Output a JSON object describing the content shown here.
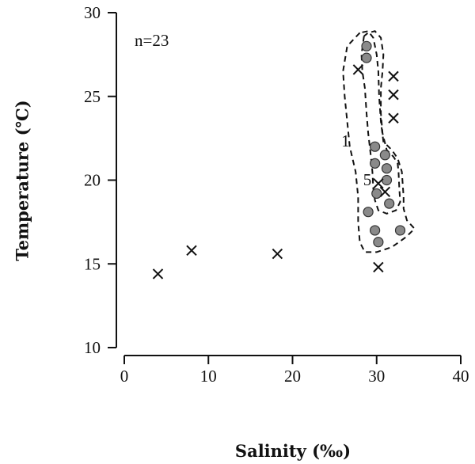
{
  "chart_data": {
    "type": "scatter",
    "xlabel": "Salinity (‰)",
    "ylabel": "Temperature (℃)",
    "xlim": [
      0,
      40
    ],
    "ylim": [
      10,
      30
    ],
    "xticks": [
      "0",
      "10",
      "20",
      "30",
      "40"
    ],
    "yticks": [
      "10",
      "15",
      "20",
      "25",
      "30"
    ],
    "grid": false,
    "annotation": "n=23",
    "contour_labels": [
      "1",
      "5"
    ],
    "series": [
      {
        "marker": "circle",
        "color": "#8a8a8a",
        "points": [
          {
            "x": 28.8,
            "y": 28.0
          },
          {
            "x": 28.8,
            "y": 27.3
          },
          {
            "x": 29.8,
            "y": 22.0
          },
          {
            "x": 31.0,
            "y": 21.5
          },
          {
            "x": 29.8,
            "y": 21.0
          },
          {
            "x": 31.2,
            "y": 20.7
          },
          {
            "x": 31.2,
            "y": 20.0
          },
          {
            "x": 30.0,
            "y": 19.2
          },
          {
            "x": 31.5,
            "y": 18.6
          },
          {
            "x": 29.0,
            "y": 18.1
          },
          {
            "x": 29.8,
            "y": 17.0
          },
          {
            "x": 32.8,
            "y": 17.0
          },
          {
            "x": 30.2,
            "y": 16.3
          }
        ]
      },
      {
        "marker": "cross",
        "color": "#111111",
        "points": [
          {
            "x": 4.0,
            "y": 14.4
          },
          {
            "x": 8.0,
            "y": 15.8
          },
          {
            "x": 18.2,
            "y": 15.6
          },
          {
            "x": 27.8,
            "y": 26.6
          },
          {
            "x": 32.0,
            "y": 26.2
          },
          {
            "x": 32.0,
            "y": 25.1
          },
          {
            "x": 32.0,
            "y": 23.7
          },
          {
            "x": 30.2,
            "y": 19.8
          },
          {
            "x": 31.0,
            "y": 19.3
          },
          {
            "x": 30.2,
            "y": 14.8
          }
        ]
      }
    ],
    "contours": [
      {
        "level": "1",
        "points": [
          [
            28.0,
            28.8
          ],
          [
            26.5,
            28.0
          ],
          [
            26.0,
            26.5
          ],
          [
            26.2,
            25.0
          ],
          [
            26.5,
            23.5
          ],
          [
            26.8,
            22.0
          ],
          [
            27.5,
            20.5
          ],
          [
            27.8,
            19.0
          ],
          [
            27.8,
            17.5
          ],
          [
            28.0,
            16.3
          ],
          [
            28.6,
            15.7
          ],
          [
            30.0,
            15.7
          ],
          [
            31.8,
            16.0
          ],
          [
            33.5,
            16.6
          ],
          [
            34.5,
            17.1
          ],
          [
            33.6,
            17.6
          ],
          [
            33.2,
            18.3
          ],
          [
            33.2,
            19.0
          ],
          [
            33.0,
            20.5
          ],
          [
            32.5,
            21.3
          ],
          [
            31.8,
            21.8
          ],
          [
            30.8,
            22.3
          ],
          [
            30.5,
            23.5
          ],
          [
            30.3,
            25.0
          ],
          [
            30.2,
            26.5
          ],
          [
            30.0,
            27.5
          ],
          [
            29.6,
            28.5
          ],
          [
            29.0,
            28.9
          ],
          [
            28.0,
            28.8
          ]
        ]
      },
      {
        "level": "5",
        "points": [
          [
            28.5,
            28.6
          ],
          [
            28.2,
            27.5
          ],
          [
            28.3,
            26.5
          ],
          [
            28.6,
            25.5
          ],
          [
            28.8,
            24.0
          ],
          [
            29.0,
            22.8
          ],
          [
            29.3,
            21.5
          ],
          [
            29.5,
            20.5
          ],
          [
            29.6,
            19.5
          ],
          [
            29.8,
            18.8
          ],
          [
            30.2,
            18.2
          ],
          [
            31.2,
            18.0
          ],
          [
            32.3,
            18.2
          ],
          [
            32.8,
            18.7
          ],
          [
            32.7,
            19.5
          ],
          [
            32.6,
            20.5
          ],
          [
            32.5,
            21.0
          ],
          [
            32.0,
            21.4
          ],
          [
            31.2,
            21.8
          ],
          [
            30.7,
            22.8
          ],
          [
            30.5,
            24.0
          ],
          [
            30.5,
            25.5
          ],
          [
            30.7,
            26.5
          ],
          [
            30.8,
            27.5
          ],
          [
            30.5,
            28.5
          ],
          [
            29.8,
            28.9
          ],
          [
            29.0,
            28.8
          ],
          [
            28.5,
            28.6
          ]
        ]
      }
    ]
  }
}
